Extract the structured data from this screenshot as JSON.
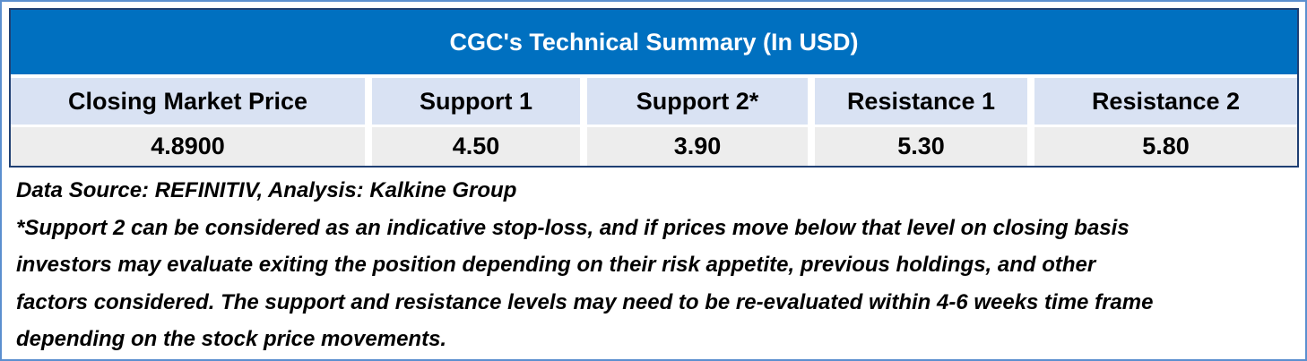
{
  "table": {
    "title": "CGC's Technical Summary (In USD)",
    "columns": [
      "Closing Market Price",
      "Support 1",
      "Support 2*",
      "Resistance 1",
      "Resistance 2"
    ],
    "values": [
      "4.8900",
      "4.50",
      "3.90",
      "5.30",
      "5.80"
    ]
  },
  "notes": {
    "source": "Data Source: REFINITIV, Analysis: Kalkine Group",
    "disclaimer_lines": [
      "*Support 2 can be considered as an indicative stop-loss, and if prices move below that level on closing basis",
      "investors may evaluate exiting the position depending on their risk appetite, previous holdings, and other",
      "factors considered. The support and resistance levels may need to be re-evaluated within 4-6 weeks time frame",
      "depending on the stock price movements."
    ]
  },
  "colors": {
    "header_bg": "#0070c0",
    "label_row_bg": "#d9e2f3",
    "value_row_bg": "#ededed",
    "table_border": "#1f3f73",
    "outer_border": "#5b8fcf"
  }
}
